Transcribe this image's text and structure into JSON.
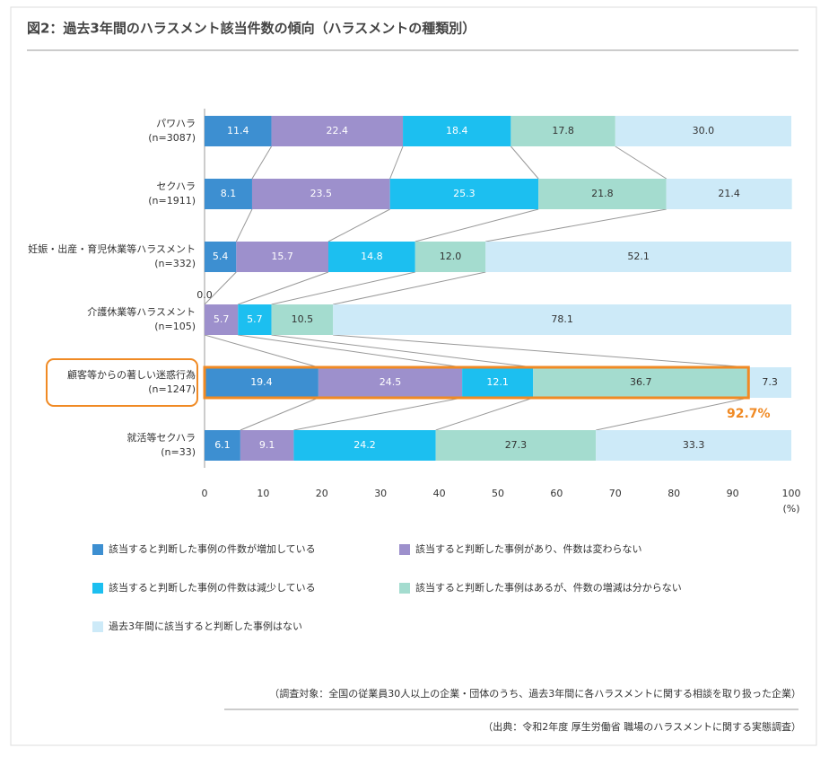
{
  "chart_data": {
    "type": "stacked-bar-horizontal",
    "title": "図2：過去3年間のハラスメント該当件数の傾向（ハラスメントの種類別）",
    "categories": [
      "パワハラ\n(n=3087)",
      "セクハラ\n(n=1911)",
      "妊娠・出産・育児休業等ハラスメント\n(n=332)",
      "介護休業等ハラスメント\n(n=105)",
      "顧客等からの著しい迷惑行為\n(n=1247)",
      "就活等セクハラ\n(n=33)"
    ],
    "series": [
      {
        "name": "該当すると判断した事例の件数が増加している",
        "color": "#3d8fd1",
        "values": [
          11.4,
          8.1,
          5.4,
          0.0,
          19.4,
          6.1
        ],
        "value_labels": [
          "11.4",
          "8.1",
          "5.4",
          "0.0",
          "19.4",
          "6.1"
        ]
      },
      {
        "name": "該当すると判断した事例があり、件数は変わらない",
        "color": "#9d90cc",
        "values": [
          22.4,
          23.5,
          15.7,
          5.7,
          24.5,
          9.1
        ],
        "value_labels": [
          "22.4",
          "23.5",
          "15.7",
          "5.7",
          "24.5",
          "9.1"
        ]
      },
      {
        "name": "該当すると判断した事例の件数は減少している",
        "color": "#1cbff0",
        "values": [
          18.4,
          25.3,
          14.8,
          5.7,
          12.1,
          24.2
        ],
        "value_labels": [
          "18.4",
          "25.3",
          "14.8",
          "5.7",
          "12.1",
          "24.2"
        ]
      },
      {
        "name": "該当すると判断した事例はあるが、件数の増減は分からない",
        "color": "#a4dccf",
        "values": [
          17.8,
          21.8,
          12.0,
          10.5,
          36.7,
          27.3
        ],
        "value_labels": [
          "17.8",
          "21.8",
          "12.0",
          "10.5",
          "36.7",
          "27.3"
        ]
      },
      {
        "name": "過去3年間に該当すると判断した事例はない",
        "color": "#cdeaf8",
        "values": [
          30.0,
          21.4,
          52.1,
          78.1,
          7.3,
          33.3
        ],
        "value_labels": [
          "30.0",
          "21.4",
          "52.1",
          "78.1",
          "7.3",
          "33.3"
        ]
      }
    ],
    "xlim": [
      0,
      100
    ],
    "xticks": [
      0,
      10,
      20,
      30,
      40,
      50,
      60,
      70,
      80,
      90,
      100
    ],
    "x_axis_label": "(%)",
    "annotation": "92.7%",
    "note": "（調査対象：全国の従業員30人以上の企業・団体のうち、過去3年間に各ハラスメントに関する相談を取り扱った企業）",
    "source": "（出典：令和2年度 厚生労働省 職場のハラスメントに関する実態調査）"
  }
}
